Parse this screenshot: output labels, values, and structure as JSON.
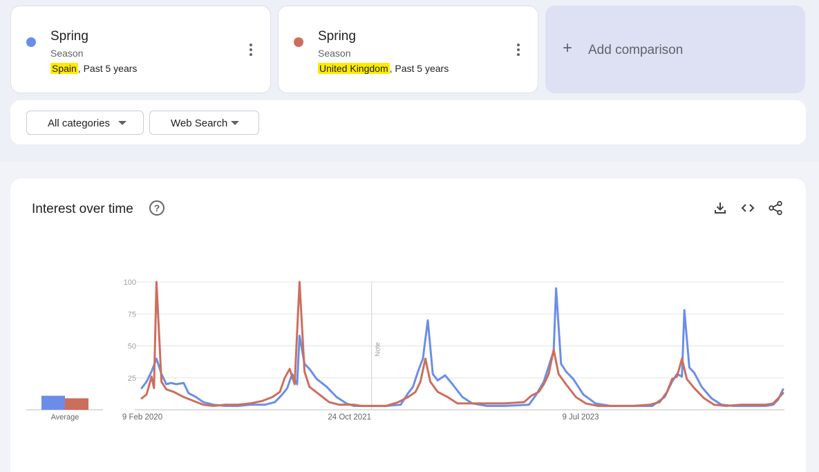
{
  "terms": [
    {
      "name": "Spring",
      "type": "Season",
      "location": "Spain",
      "period": ", Past 5 years",
      "color": "#6a8ee8"
    },
    {
      "name": "Spring",
      "type": "Season",
      "location": "United Kingdom",
      "period": ", Past 5 years",
      "color": "#cc6e5d"
    }
  ],
  "add_comparison": {
    "label": "Add comparison",
    "icon": "plus-icon"
  },
  "filters": {
    "category": "All categories",
    "search_type": "Web Search"
  },
  "chart_panel": {
    "title": "Interest over time",
    "icons": [
      "help-icon",
      "download-icon",
      "embed-code-icon",
      "share-icon"
    ]
  },
  "chart_data": {
    "type": "line",
    "title": "Interest over time",
    "xlabel": "",
    "ylabel": "",
    "ylim": [
      0,
      100
    ],
    "yticks": [
      25,
      50,
      75,
      100
    ],
    "x_tick_labels": [
      "9 Feb 2020",
      "24 Oct 2021",
      "9 Jul 2023"
    ],
    "x_range": [
      "2020-02-09",
      "2025-02-02"
    ],
    "grid": true,
    "note_label": "Note",
    "average_label": "Average",
    "averages": [
      {
        "name": "Spain",
        "value": 11
      },
      {
        "name": "United Kingdom",
        "value": 9
      }
    ],
    "series": [
      {
        "name": "Spain",
        "color": "#6a8ee8",
        "points": [
          [
            "2020-02-09",
            17
          ],
          [
            "2020-02-23",
            22
          ],
          [
            "2020-03-08",
            30
          ],
          [
            "2020-03-22",
            40
          ],
          [
            "2020-04-05",
            28
          ],
          [
            "2020-04-19",
            20
          ],
          [
            "2020-05-03",
            21
          ],
          [
            "2020-05-17",
            20
          ],
          [
            "2020-06-07",
            21
          ],
          [
            "2020-06-21",
            13
          ],
          [
            "2020-07-12",
            10
          ],
          [
            "2020-08-02",
            6
          ],
          [
            "2020-08-30",
            4
          ],
          [
            "2020-10-04",
            3
          ],
          [
            "2020-11-08",
            3
          ],
          [
            "2020-12-13",
            4
          ],
          [
            "2021-01-24",
            4
          ],
          [
            "2021-02-21",
            6
          ],
          [
            "2021-03-14",
            12
          ],
          [
            "2021-03-28",
            17
          ],
          [
            "2021-04-11",
            28
          ],
          [
            "2021-04-25",
            20
          ],
          [
            "2021-05-02",
            58
          ],
          [
            "2021-05-16",
            36
          ],
          [
            "2021-05-30",
            32
          ],
          [
            "2021-06-20",
            24
          ],
          [
            "2021-07-18",
            18
          ],
          [
            "2021-08-15",
            10
          ],
          [
            "2021-09-12",
            5
          ],
          [
            "2021-10-03",
            3
          ],
          [
            "2021-10-24",
            3
          ],
          [
            "2022-01-02",
            3
          ],
          [
            "2022-02-13",
            4
          ],
          [
            "2022-03-06",
            13
          ],
          [
            "2022-03-20",
            18
          ],
          [
            "2022-04-03",
            30
          ],
          [
            "2022-04-17",
            40
          ],
          [
            "2022-05-01",
            70
          ],
          [
            "2022-05-15",
            28
          ],
          [
            "2022-05-29",
            23
          ],
          [
            "2022-06-19",
            27
          ],
          [
            "2022-07-10",
            20
          ],
          [
            "2022-08-07",
            10
          ],
          [
            "2022-09-04",
            5
          ],
          [
            "2022-10-16",
            3
          ],
          [
            "2022-12-04",
            3
          ],
          [
            "2023-02-12",
            4
          ],
          [
            "2023-03-05",
            12
          ],
          [
            "2023-03-26",
            22
          ],
          [
            "2023-04-09",
            34
          ],
          [
            "2023-04-23",
            46
          ],
          [
            "2023-04-30",
            95
          ],
          [
            "2023-05-14",
            36
          ],
          [
            "2023-05-28",
            30
          ],
          [
            "2023-06-18",
            24
          ],
          [
            "2023-07-16",
            12
          ],
          [
            "2023-08-20",
            5
          ],
          [
            "2023-10-01",
            3
          ],
          [
            "2023-12-03",
            3
          ],
          [
            "2024-01-28",
            3
          ],
          [
            "2024-03-03",
            10
          ],
          [
            "2024-03-24",
            22
          ],
          [
            "2024-04-07",
            28
          ],
          [
            "2024-04-21",
            26
          ],
          [
            "2024-04-28",
            78
          ],
          [
            "2024-05-12",
            33
          ],
          [
            "2024-05-26",
            29
          ],
          [
            "2024-06-16",
            18
          ],
          [
            "2024-07-14",
            9
          ],
          [
            "2024-08-11",
            4
          ],
          [
            "2024-09-15",
            3
          ],
          [
            "2024-11-03",
            3
          ],
          [
            "2024-12-15",
            3
          ],
          [
            "2025-01-05",
            4
          ],
          [
            "2025-01-19",
            8
          ],
          [
            "2025-02-02",
            16
          ]
        ]
      },
      {
        "name": "United Kingdom",
        "color": "#cc6e5d",
        "points": [
          [
            "2020-02-09",
            9
          ],
          [
            "2020-02-23",
            12
          ],
          [
            "2020-03-08",
            26
          ],
          [
            "2020-03-15",
            17
          ],
          [
            "2020-03-22",
            100
          ],
          [
            "2020-04-05",
            22
          ],
          [
            "2020-04-19",
            16
          ],
          [
            "2020-05-10",
            14
          ],
          [
            "2020-06-07",
            10
          ],
          [
            "2020-07-05",
            7
          ],
          [
            "2020-08-02",
            4
          ],
          [
            "2020-08-30",
            3
          ],
          [
            "2020-10-04",
            4
          ],
          [
            "2020-11-08",
            4
          ],
          [
            "2020-12-13",
            5
          ],
          [
            "2021-01-17",
            7
          ],
          [
            "2021-02-14",
            10
          ],
          [
            "2021-03-07",
            14
          ],
          [
            "2021-03-21",
            25
          ],
          [
            "2021-04-04",
            32
          ],
          [
            "2021-04-18",
            20
          ],
          [
            "2021-05-02",
            100
          ],
          [
            "2021-05-16",
            30
          ],
          [
            "2021-05-30",
            18
          ],
          [
            "2021-06-27",
            12
          ],
          [
            "2021-07-25",
            6
          ],
          [
            "2021-08-22",
            4
          ],
          [
            "2021-10-03",
            4
          ],
          [
            "2021-10-24",
            3
          ],
          [
            "2022-01-02",
            3
          ],
          [
            "2022-02-06",
            6
          ],
          [
            "2022-03-06",
            10
          ],
          [
            "2022-03-27",
            14
          ],
          [
            "2022-04-10",
            22
          ],
          [
            "2022-04-24",
            40
          ],
          [
            "2022-05-08",
            22
          ],
          [
            "2022-05-29",
            14
          ],
          [
            "2022-06-26",
            10
          ],
          [
            "2022-07-24",
            5
          ],
          [
            "2022-09-04",
            5
          ],
          [
            "2022-10-16",
            5
          ],
          [
            "2022-12-04",
            5
          ],
          [
            "2023-01-29",
            6
          ],
          [
            "2023-02-19",
            11
          ],
          [
            "2023-03-12",
            14
          ],
          [
            "2023-03-26",
            20
          ],
          [
            "2023-04-09",
            28
          ],
          [
            "2023-04-23",
            47
          ],
          [
            "2023-05-07",
            28
          ],
          [
            "2023-05-28",
            20
          ],
          [
            "2023-06-25",
            10
          ],
          [
            "2023-07-23",
            5
          ],
          [
            "2023-08-27",
            3
          ],
          [
            "2023-10-08",
            3
          ],
          [
            "2023-12-03",
            3
          ],
          [
            "2024-01-21",
            4
          ],
          [
            "2024-02-18",
            6
          ],
          [
            "2024-03-10",
            14
          ],
          [
            "2024-03-24",
            24
          ],
          [
            "2024-04-07",
            26
          ],
          [
            "2024-04-21",
            40
          ],
          [
            "2024-05-05",
            24
          ],
          [
            "2024-05-26",
            17
          ],
          [
            "2024-06-23",
            9
          ],
          [
            "2024-07-21",
            4
          ],
          [
            "2024-08-25",
            3
          ],
          [
            "2024-10-06",
            4
          ],
          [
            "2024-11-10",
            4
          ],
          [
            "2024-12-15",
            4
          ],
          [
            "2025-01-05",
            5
          ],
          [
            "2025-01-19",
            9
          ],
          [
            "2025-02-02",
            13
          ]
        ]
      }
    ]
  }
}
